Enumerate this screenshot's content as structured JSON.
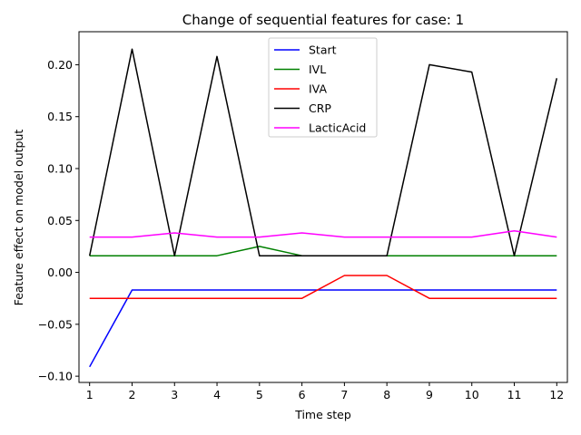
{
  "chart_data": {
    "type": "line",
    "title": "Change of sequential features for case: 1",
    "xlabel": "Time step",
    "ylabel": "Feature effect on model output",
    "x": [
      1,
      2,
      3,
      4,
      5,
      6,
      7,
      8,
      9,
      10,
      11,
      12
    ],
    "xlim": [
      0.75,
      12.25
    ],
    "ylim": [
      -0.106,
      0.2318
    ],
    "yticks": [
      -0.1,
      -0.05,
      0.0,
      0.05,
      0.1,
      0.15,
      0.2
    ],
    "ytick_labels": [
      "−0.10",
      "−0.05",
      "0.00",
      "0.05",
      "0.10",
      "0.15",
      "0.20"
    ],
    "xtick_labels": [
      "1",
      "2",
      "3",
      "4",
      "5",
      "6",
      "7",
      "8",
      "9",
      "10",
      "11",
      "12"
    ],
    "grid": false,
    "legend_position": "top-center",
    "series": [
      {
        "name": "Start",
        "color": "#0000ff",
        "values": [
          -0.091,
          -0.017,
          -0.017,
          -0.017,
          -0.017,
          -0.017,
          -0.017,
          -0.017,
          -0.017,
          -0.017,
          -0.017,
          -0.017
        ]
      },
      {
        "name": "IVL",
        "color": "#008000",
        "values": [
          0.016,
          0.016,
          0.016,
          0.016,
          0.025,
          0.016,
          0.016,
          0.016,
          0.016,
          0.016,
          0.016,
          0.016
        ]
      },
      {
        "name": "IVA",
        "color": "#ff0000",
        "values": [
          -0.025,
          -0.025,
          -0.025,
          -0.025,
          -0.025,
          -0.025,
          -0.003,
          -0.003,
          -0.025,
          -0.025,
          -0.025,
          -0.025
        ]
      },
      {
        "name": "CRP",
        "color": "#000000",
        "values": [
          0.016,
          0.215,
          0.016,
          0.208,
          0.016,
          0.016,
          0.016,
          0.016,
          0.2,
          0.193,
          0.016,
          0.187
        ]
      },
      {
        "name": "LacticAcid",
        "color": "#ff00ff",
        "values": [
          0.034,
          0.034,
          0.038,
          0.034,
          0.034,
          0.038,
          0.034,
          0.034,
          0.034,
          0.034,
          0.04,
          0.034
        ]
      }
    ]
  }
}
